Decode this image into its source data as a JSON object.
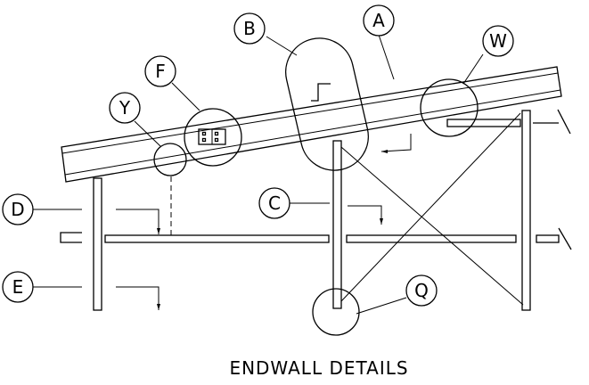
{
  "title": "ENDWALL DETAILS",
  "callouts": {
    "a": "A",
    "b": "B",
    "c": "C",
    "d": "D",
    "e": "E",
    "f": "F",
    "q": "Q",
    "w": "W",
    "y": "Y"
  }
}
